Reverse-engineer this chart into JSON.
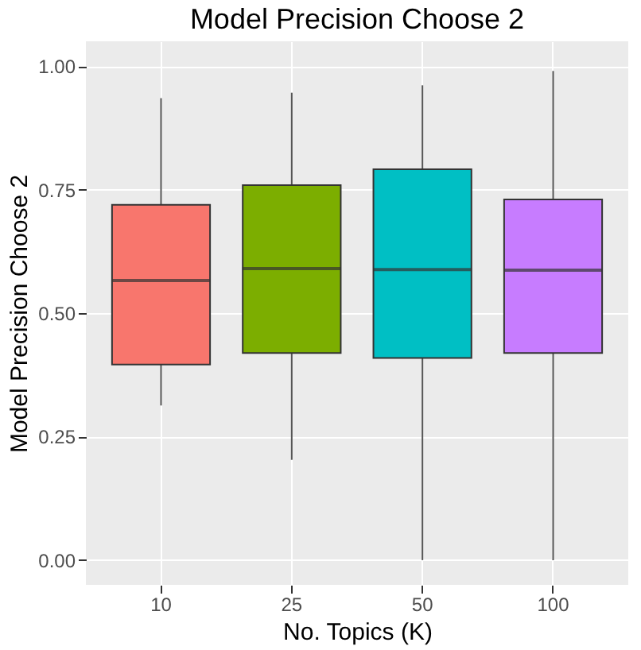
{
  "chart_data": {
    "type": "box",
    "title": "Model Precision Choose 2",
    "xlabel": "No. Topics (K)",
    "ylabel": "Model Precision Choose 2",
    "categories": [
      "10",
      "25",
      "50",
      "100"
    ],
    "boxes": [
      {
        "low": 0.313,
        "q1": 0.396,
        "median": 0.566,
        "q3": 0.719,
        "high": 0.935
      },
      {
        "low": 0.203,
        "q1": 0.419,
        "median": 0.59,
        "q3": 0.759,
        "high": 0.946
      },
      {
        "low": 0,
        "q1": 0.409,
        "median": 0.588,
        "q3": 0.791,
        "high": 0.961
      },
      {
        "low": 0,
        "q1": 0.419,
        "median": 0.587,
        "q3": 0.73,
        "high": 0.99
      }
    ],
    "colors": [
      "#f8766d",
      "#7cae00",
      "#00bfc4",
      "#c77cff"
    ],
    "ylim": [
      -0.05,
      1.05
    ],
    "yticks": [
      {
        "value": 0,
        "label": "0.00"
      },
      {
        "value": 0.25,
        "label": "0.25"
      },
      {
        "value": 0.5,
        "label": "0.50"
      },
      {
        "value": 0.75,
        "label": "0.75"
      },
      {
        "value": 1,
        "label": "1.00"
      }
    ],
    "grid": true,
    "legend": false
  }
}
